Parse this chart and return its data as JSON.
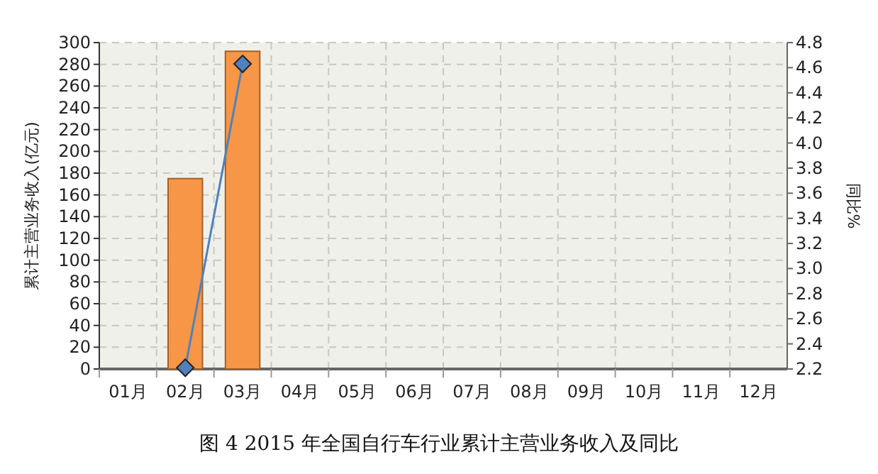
{
  "chart_data": {
    "type": "bar",
    "title": "图 4  2015 年全国自行车行业累计主营业务收入及同比",
    "ylabel": "累计主营业务收入(亿元)",
    "y2label": "同比%",
    "categories": [
      "01月",
      "02月",
      "03月",
      "04月",
      "05月",
      "06月",
      "07月",
      "08月",
      "09月",
      "10月",
      "11月",
      "12月"
    ],
    "series": [
      {
        "color": "#f79646",
        "values": [
          null,
          175,
          292,
          null,
          null,
          null,
          null,
          null,
          null,
          null,
          null,
          null
        ]
      },
      {
        "type": "line",
        "axis": "y2",
        "color": "#4f81bd",
        "marker": "diamond",
        "values": [
          null,
          2.21,
          4.63,
          null,
          null,
          null,
          null,
          null,
          null,
          null,
          null,
          null
        ]
      }
    ],
    "ylim": [
      0,
      300
    ],
    "yticks": [
      0,
      20,
      40,
      60,
      80,
      100,
      120,
      140,
      160,
      180,
      200,
      220,
      240,
      260,
      280,
      300
    ],
    "y2lim": [
      2.2,
      4.8
    ],
    "y2ticks": [
      2.2,
      2.4,
      2.6,
      2.8,
      {
        "value": 3,
        "label": "3.0"
      },
      3.2,
      3.4,
      3.6,
      3.8,
      {
        "value": 4,
        "label": "4.0"
      },
      4.2,
      4.4,
      4.6,
      4.8
    ],
    "grid": true
  }
}
